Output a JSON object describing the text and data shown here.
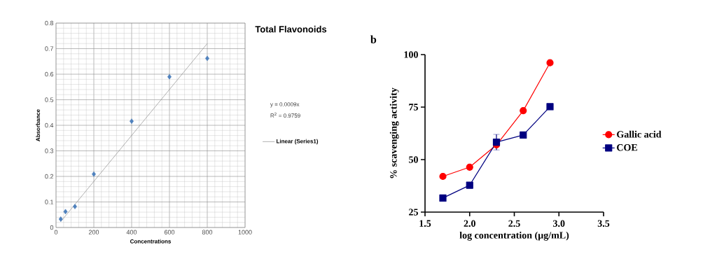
{
  "chart_data": [
    {
      "type": "scatter",
      "title": "Total Flavonoids",
      "xlabel": "Concentrations",
      "ylabel": "Absorbance",
      "xlim": [
        0,
        1000
      ],
      "ylim": [
        0,
        0.8
      ],
      "xticks": [
        0,
        200,
        400,
        600,
        800,
        1000
      ],
      "yticks": [
        0,
        0.1,
        0.2,
        0.3,
        0.4,
        0.5,
        0.6,
        0.7,
        0.8
      ],
      "grid": true,
      "legend": "right",
      "annotations": [
        "y = 0.0009x",
        "R$^{2}$ = 0.9759"
      ],
      "series": [
        {
          "type": "scatter",
          "color": "#4f81bd",
          "marker": "diamond",
          "x": [
            25,
            50,
            100,
            200,
            400,
            600,
            800
          ],
          "values": [
            0.033,
            0.062,
            0.082,
            0.209,
            0.416,
            0.59,
            0.662
          ]
        },
        {
          "type": "line",
          "name": "Linear (Series1)",
          "color": "#808080",
          "marker": "none",
          "x": [
            25,
            800
          ],
          "values": [
            0.023,
            0.72
          ]
        }
      ]
    },
    {
      "type": "line",
      "title": "b",
      "xlabel": "log concentration (µg/mL)",
      "ylabel": "% scavenging activity",
      "xlim": [
        1.5,
        3.5
      ],
      "ylim": [
        25,
        100
      ],
      "xticks": [
        1.5,
        {
          "value": 2,
          "label": "2.0"
        },
        2.5,
        {
          "value": 3,
          "label": "3.0"
        },
        3.5
      ],
      "yticks": [
        25,
        50,
        75,
        100
      ],
      "legend": "right",
      "series": [
        {
          "name": "Gallic acid",
          "color": "#ff0000",
          "marker": "circle",
          "x": [
            1.7,
            2.0,
            2.3,
            2.6,
            2.9
          ],
          "values": [
            42.0,
            46.4,
            57,
            73.3,
            96.1
          ]
        },
        {
          "name": "COE",
          "color": "#000080",
          "marker": "square",
          "x": [
            1.7,
            2.0,
            2.3,
            2.6,
            2.9
          ],
          "values": [
            31.7,
            37.8,
            58.3,
            61.7,
            75.2
          ],
          "errors": [
            null,
            null,
            3.7,
            null,
            null
          ]
        }
      ]
    }
  ]
}
